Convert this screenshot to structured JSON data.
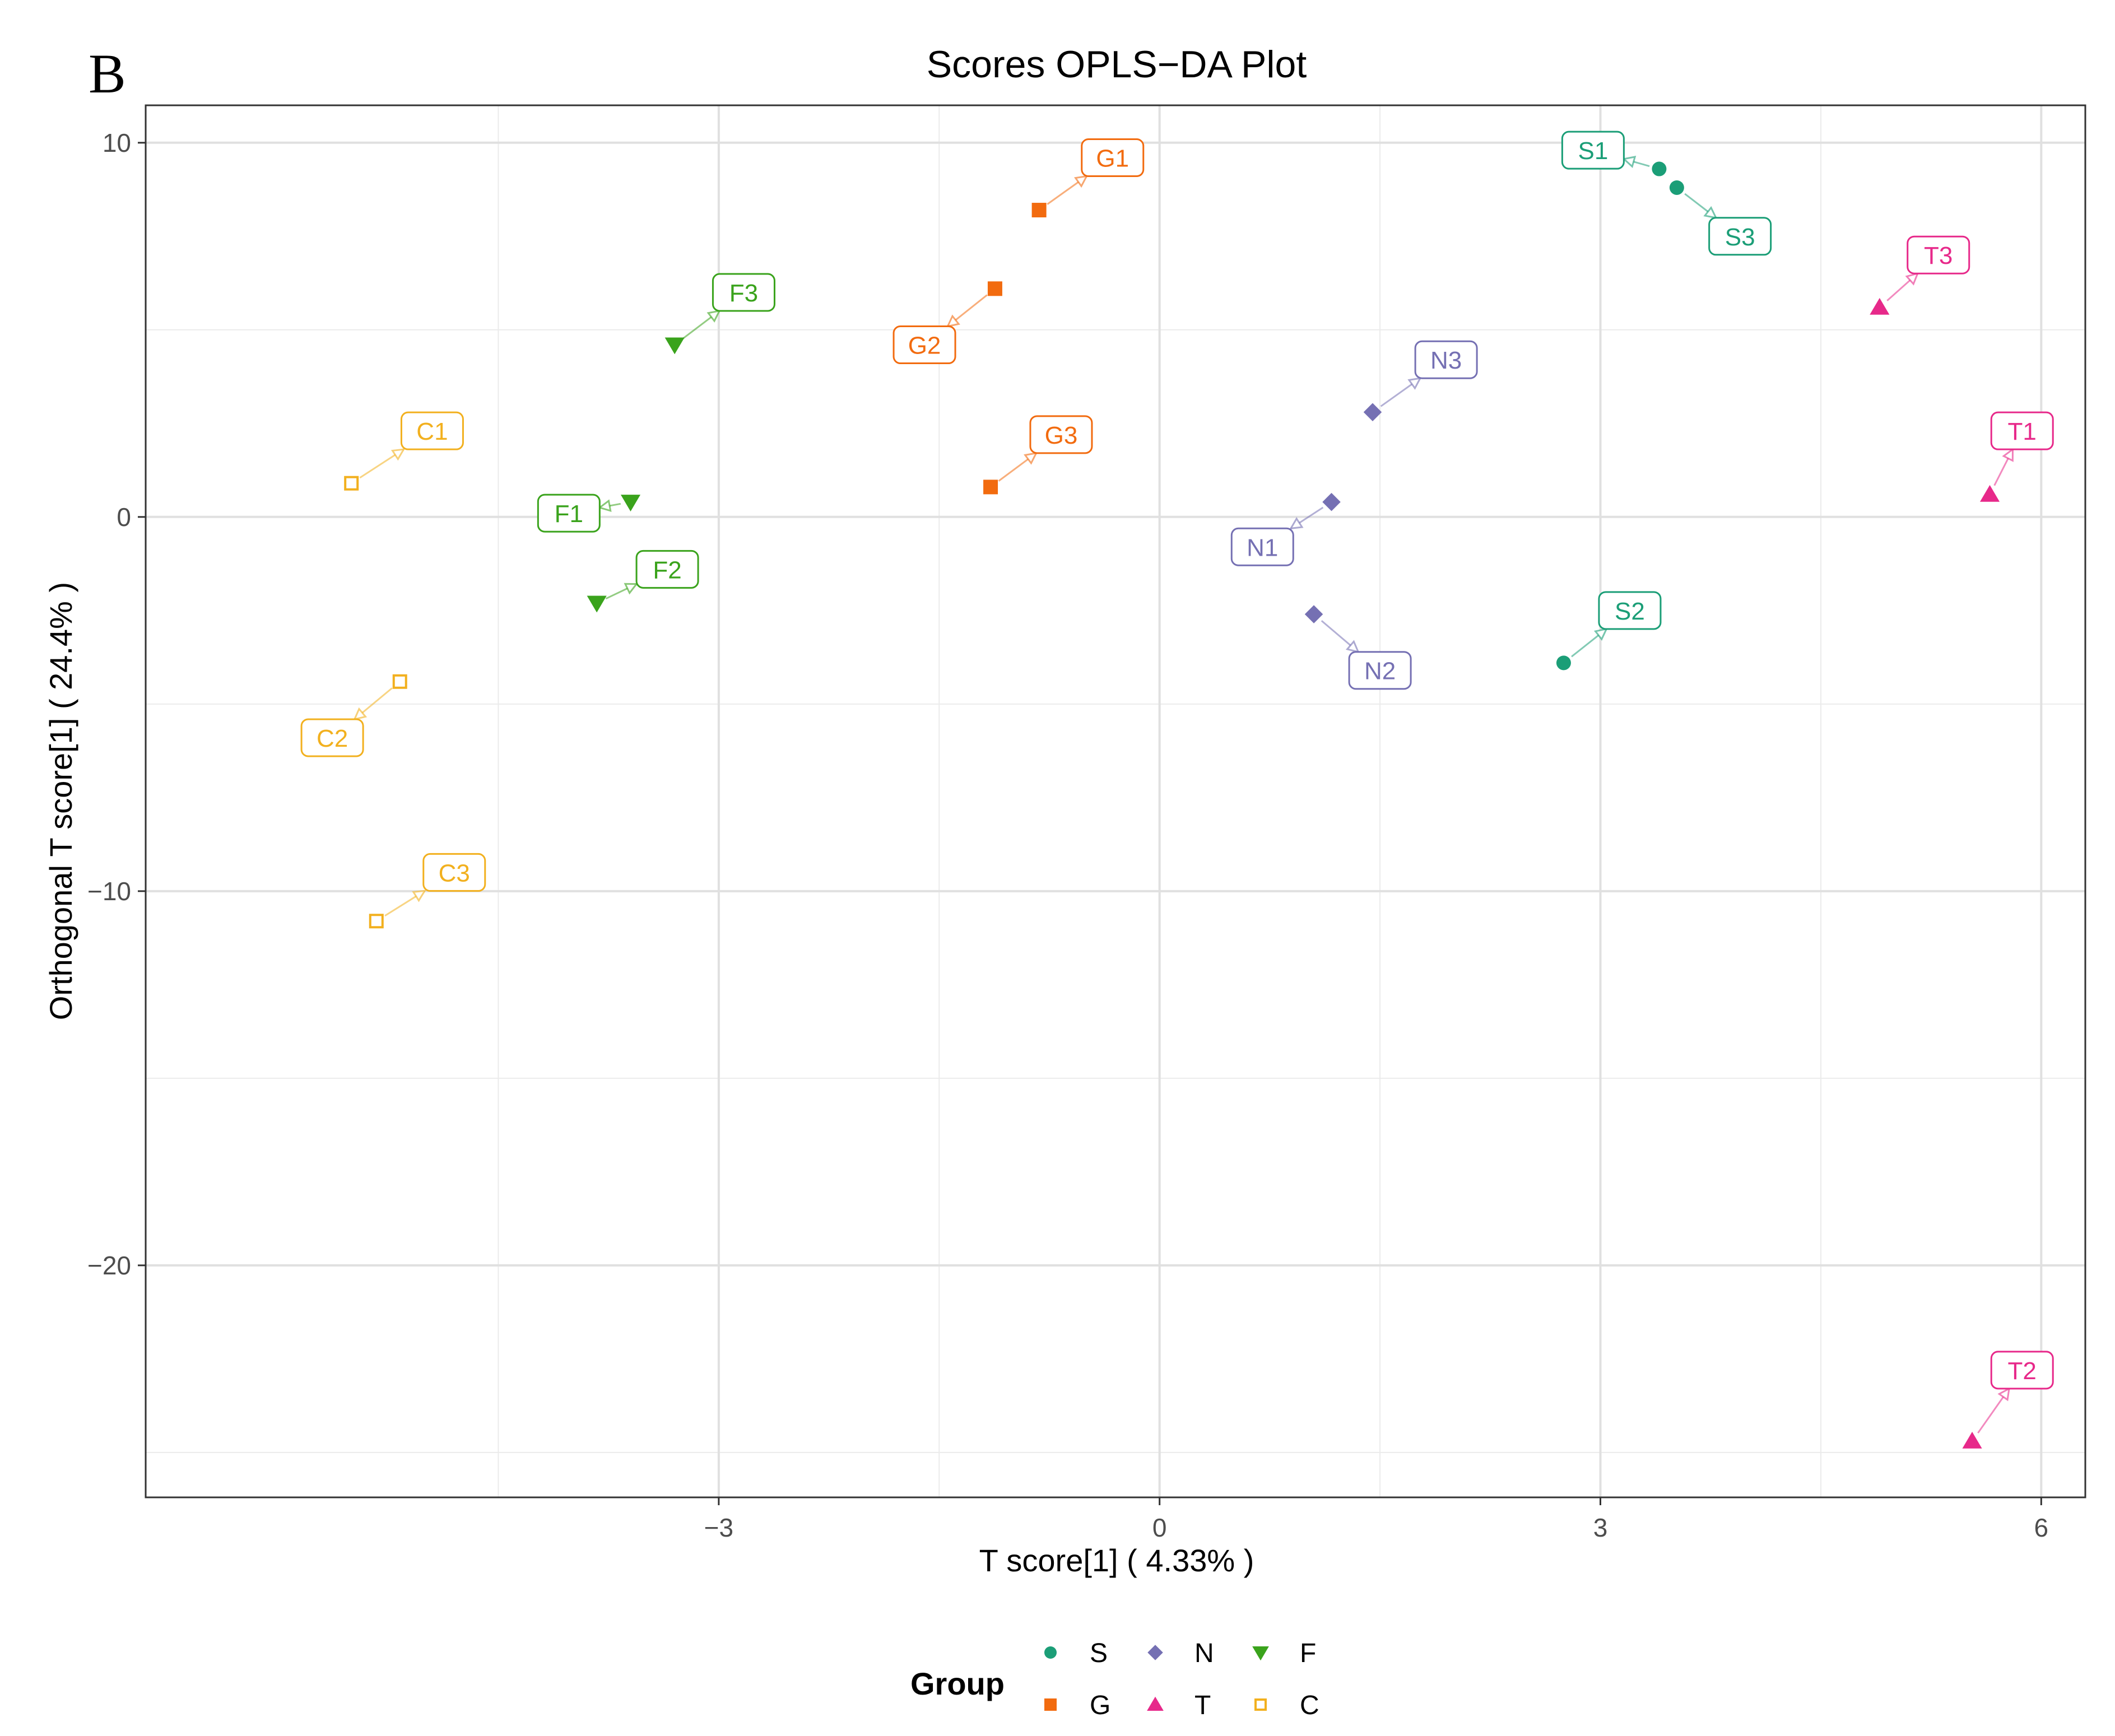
{
  "panel_letter": "B",
  "chart_data": {
    "type": "scatter",
    "title": "Scores OPLS−DA Plot",
    "xlabel": "T score[1] ( 4.33% )",
    "ylabel": "Orthogonal T score[1] ( 24.4% )",
    "xlim": [
      -6.9,
      6.3
    ],
    "ylim": [
      -26.2,
      11.0
    ],
    "x_major_ticks": [
      -3,
      0,
      3,
      6
    ],
    "x_tick_labels": [
      "−3",
      "0",
      "3",
      "6"
    ],
    "x_minor_ticks": [
      -4.5,
      -1.5,
      1.5,
      4.5
    ],
    "y_major_ticks": [
      -20,
      -10,
      0,
      10
    ],
    "y_tick_labels": [
      "−20",
      "−10",
      "0",
      "10"
    ],
    "y_minor_ticks": [
      -25,
      -15,
      -5,
      5
    ],
    "grid": true,
    "legend": {
      "title": "Group",
      "placement": "bottom",
      "rows": [
        [
          "S",
          "N",
          "F"
        ],
        [
          "G",
          "T",
          "C"
        ]
      ]
    },
    "series": [
      {
        "name": "S",
        "color": "#1b9e77",
        "shape": "circle",
        "points": [
          {
            "label": "S1",
            "x": 3.4,
            "y": 9.3,
            "lx": 2.95,
            "ly": 9.8
          },
          {
            "label": "S2",
            "x": 2.75,
            "y": -3.9,
            "lx": 3.2,
            "ly": -2.5
          },
          {
            "label": "S3",
            "x": 3.52,
            "y": 8.8,
            "lx": 3.95,
            "ly": 7.5
          }
        ]
      },
      {
        "name": "G",
        "color": "#f26b0f",
        "shape": "square",
        "points": [
          {
            "label": "G1",
            "x": -0.82,
            "y": 8.2,
            "lx": -0.32,
            "ly": 9.6
          },
          {
            "label": "G2",
            "x": -1.12,
            "y": 6.1,
            "lx": -1.6,
            "ly": 4.6
          },
          {
            "label": "G3",
            "x": -1.15,
            "y": 0.8,
            "lx": -0.67,
            "ly": 2.2
          }
        ]
      },
      {
        "name": "N",
        "color": "#7570b3",
        "shape": "diamond",
        "points": [
          {
            "label": "N1",
            "x": 1.17,
            "y": 0.4,
            "lx": 0.7,
            "ly": -0.8
          },
          {
            "label": "N2",
            "x": 1.05,
            "y": -2.6,
            "lx": 1.5,
            "ly": -4.1
          },
          {
            "label": "N3",
            "x": 1.45,
            "y": 2.8,
            "lx": 1.95,
            "ly": 4.2
          }
        ]
      },
      {
        "name": "T",
        "color": "#e7298a",
        "shape": "triangle-up",
        "points": [
          {
            "label": "T1",
            "x": 5.65,
            "y": 0.6,
            "lx": 5.87,
            "ly": 2.3
          },
          {
            "label": "T2",
            "x": 5.53,
            "y": -24.7,
            "lx": 5.87,
            "ly": -22.8
          },
          {
            "label": "T3",
            "x": 4.9,
            "y": 5.6,
            "lx": 5.3,
            "ly": 7.0
          }
        ]
      },
      {
        "name": "F",
        "color": "#3aa31c",
        "shape": "triangle-down",
        "points": [
          {
            "label": "F1",
            "x": -3.6,
            "y": 0.4,
            "lx": -4.02,
            "ly": 0.1
          },
          {
            "label": "F2",
            "x": -3.83,
            "y": -2.3,
            "lx": -3.35,
            "ly": -1.4
          },
          {
            "label": "F3",
            "x": -3.3,
            "y": 4.6,
            "lx": -2.83,
            "ly": 6.0
          }
        ]
      },
      {
        "name": "C",
        "color": "#f2b01e",
        "shape": "square-open",
        "points": [
          {
            "label": "C1",
            "x": -5.5,
            "y": 0.9,
            "lx": -4.95,
            "ly": 2.3
          },
          {
            "label": "C2",
            "x": -5.17,
            "y": -4.4,
            "lx": -5.63,
            "ly": -5.9
          },
          {
            "label": "C3",
            "x": -5.33,
            "y": -10.8,
            "lx": -4.8,
            "ly": -9.5
          }
        ]
      }
    ]
  }
}
